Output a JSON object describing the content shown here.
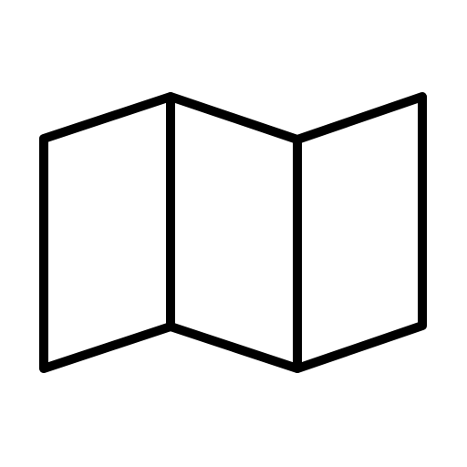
{
  "icon": {
    "name": "folded-map-icon",
    "stroke_color": "#000000",
    "background_color": "#ffffff"
  }
}
